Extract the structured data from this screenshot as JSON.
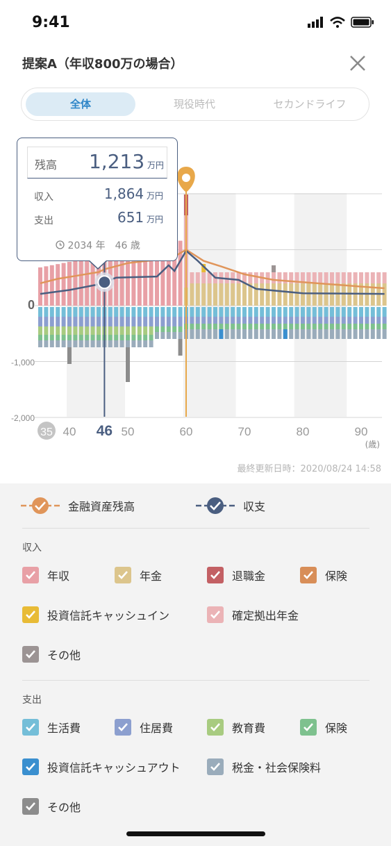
{
  "status": {
    "time": "9:41"
  },
  "header": {
    "title": "提案A（年収800万の場合）"
  },
  "tabs": [
    "全体",
    "現役時代",
    "セカンドライフ"
  ],
  "tooltip": {
    "balance_label": "残高",
    "balance_value": "1,213",
    "balance_unit": "万円",
    "income_label": "収入",
    "income_value": "1,864",
    "income_unit": "万円",
    "expense_label": "支出",
    "expense_value": "651",
    "expense_unit": "万円",
    "date": "2034 年　46 歳"
  },
  "chart_data": {
    "type": "bar",
    "x_ticks": [
      "35",
      "40",
      "46",
      "50",
      "60",
      "70",
      "80",
      "90"
    ],
    "x_unit": "(歳)",
    "y_ticks": [
      "0",
      "-1,000",
      "-2,000"
    ],
    "selected_age": 46,
    "retirement_age": 60,
    "ylim": [
      -2000,
      2000
    ],
    "series": [
      {
        "name": "金融資産残高",
        "type": "line",
        "color": "#e0955a"
      },
      {
        "name": "収支",
        "type": "line",
        "color": "#4a5e80"
      }
    ]
  },
  "updated": "最終更新日時：2020/08/24 14:58",
  "legend": {
    "lines": [
      {
        "label": "金融資産残高",
        "color": "#e0955a"
      },
      {
        "label": "収支",
        "color": "#4a5e80"
      }
    ],
    "income_title": "収入",
    "income": [
      {
        "label": "年収",
        "color": "#e8a0a6"
      },
      {
        "label": "年金",
        "color": "#dcc58c"
      },
      {
        "label": "退職金",
        "color": "#c36064"
      },
      {
        "label": "保険",
        "color": "#d88e58"
      },
      {
        "label": "投資信託キャッシュイン",
        "color": "#e8bb36"
      },
      {
        "label": "確定拠出年金",
        "color": "#ebb3b6"
      },
      {
        "label": "その他",
        "color": "#9c9494"
      }
    ],
    "expense_title": "支出",
    "expense": [
      {
        "label": "生活費",
        "color": "#74bed8"
      },
      {
        "label": "住居費",
        "color": "#8c9fcf"
      },
      {
        "label": "教育費",
        "color": "#a8cb80"
      },
      {
        "label": "保険",
        "color": "#7ec18e"
      },
      {
        "label": "投資信託キャッシュアウト",
        "color": "#3a8fcf"
      },
      {
        "label": "税金・社会保険料",
        "color": "#9aacbb"
      },
      {
        "label": "その他",
        "color": "#8c8c8c"
      }
    ]
  }
}
